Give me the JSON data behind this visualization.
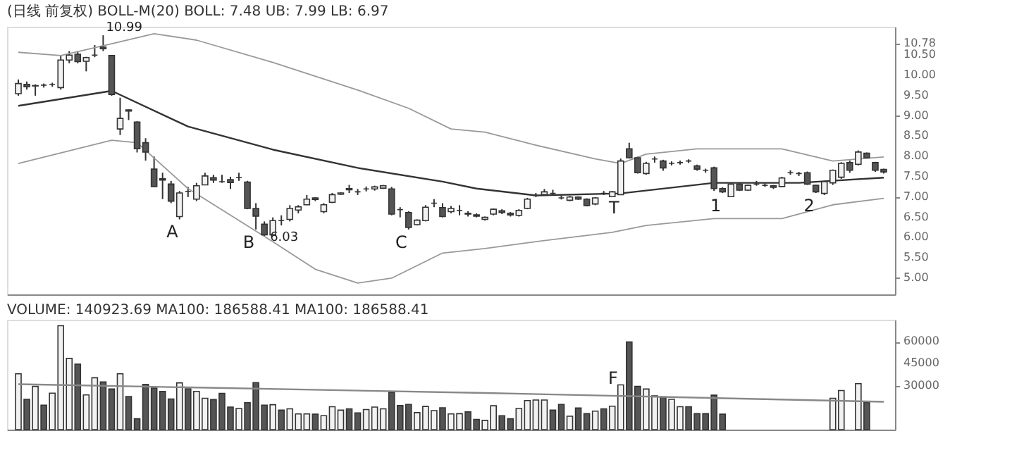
{
  "chart_data": [
    {
      "type": "candlestick",
      "title": "(日线 前复权) BOLL-M(20) BOLL: 7.48 UB: 7.99 LB: 6.97",
      "categories": [
        null,
        null,
        null,
        null,
        null,
        null,
        null,
        null,
        null,
        null,
        null,
        null,
        null,
        null,
        null,
        null,
        null,
        null,
        null,
        null,
        null,
        null,
        null,
        null,
        null,
        null,
        null,
        null,
        null,
        null,
        null,
        null,
        null,
        null,
        null,
        null,
        null,
        null,
        null,
        null,
        null,
        null,
        null,
        null,
        null,
        null,
        null,
        null,
        null,
        null,
        null,
        null,
        null,
        null,
        null,
        null,
        null,
        null,
        null,
        null,
        null,
        null,
        null,
        null,
        null,
        null,
        null,
        null,
        null,
        null,
        null,
        null,
        null,
        null,
        null,
        null,
        null,
        null,
        null,
        null,
        null,
        null,
        null,
        null,
        null,
        null,
        null,
        null,
        null,
        null,
        null,
        null,
        null,
        null,
        null,
        null,
        null,
        null,
        null,
        null,
        null,
        null,
        null
      ],
      "ohlc": [
        [
          9.55,
          9.9,
          9.5,
          9.8
        ],
        [
          9.78,
          9.85,
          9.65,
          9.72
        ],
        [
          9.74,
          9.78,
          9.5,
          9.75
        ],
        [
          9.76,
          9.8,
          9.7,
          9.76
        ],
        [
          9.78,
          9.82,
          9.72,
          9.78
        ],
        [
          9.7,
          10.5,
          9.65,
          10.38
        ],
        [
          10.38,
          10.6,
          10.3,
          10.5
        ],
        [
          10.52,
          10.6,
          10.3,
          10.34
        ],
        [
          10.35,
          10.46,
          10.1,
          10.44
        ],
        [
          10.5,
          10.75,
          10.45,
          10.5
        ],
        [
          10.7,
          10.99,
          10.6,
          10.66
        ],
        [
          10.49,
          10.5,
          9.5,
          9.53
        ],
        [
          8.68,
          9.45,
          8.53,
          8.94
        ],
        [
          9.15,
          9.16,
          8.9,
          9.12
        ],
        [
          8.85,
          8.87,
          8.1,
          8.19
        ],
        [
          8.34,
          8.45,
          7.9,
          8.11
        ],
        [
          7.69,
          8.0,
          7.25,
          7.26
        ],
        [
          7.45,
          7.6,
          6.95,
          7.42
        ],
        [
          7.32,
          7.4,
          6.85,
          6.9
        ],
        [
          6.52,
          7.15,
          6.45,
          7.1
        ],
        [
          7.14,
          7.25,
          7.0,
          7.14
        ],
        [
          6.95,
          7.35,
          6.9,
          7.28
        ],
        [
          7.3,
          7.6,
          7.3,
          7.52
        ],
        [
          7.48,
          7.55,
          7.35,
          7.42
        ],
        [
          7.38,
          7.55,
          7.35,
          7.38
        ],
        [
          7.43,
          7.5,
          7.2,
          7.36
        ],
        [
          7.48,
          7.6,
          7.4,
          7.48
        ],
        [
          7.37,
          7.4,
          6.7,
          6.72
        ],
        [
          6.72,
          6.85,
          6.2,
          6.53
        ],
        [
          6.33,
          6.4,
          6.03,
          6.07
        ],
        [
          6.07,
          6.5,
          6.05,
          6.42
        ],
        [
          6.42,
          6.55,
          6.3,
          6.42
        ],
        [
          6.45,
          6.8,
          6.4,
          6.72
        ],
        [
          6.68,
          6.8,
          6.6,
          6.76
        ],
        [
          6.81,
          7.05,
          6.8,
          6.95
        ],
        [
          6.98,
          7.0,
          6.9,
          6.94
        ],
        [
          6.64,
          6.85,
          6.6,
          6.81
        ],
        [
          6.87,
          7.1,
          6.85,
          7.06
        ],
        [
          7.07,
          7.12,
          7.05,
          7.1
        ],
        [
          7.21,
          7.3,
          7.1,
          7.18
        ],
        [
          7.13,
          7.2,
          7.05,
          7.13
        ],
        [
          7.2,
          7.26,
          7.14,
          7.2
        ],
        [
          7.2,
          7.28,
          7.16,
          7.25
        ],
        [
          7.22,
          7.3,
          7.2,
          7.28
        ],
        [
          7.2,
          7.25,
          6.55,
          6.58
        ],
        [
          6.69,
          6.75,
          6.5,
          6.69
        ],
        [
          6.62,
          6.65,
          6.2,
          6.25
        ],
        [
          6.32,
          6.45,
          6.3,
          6.43
        ],
        [
          6.42,
          6.8,
          6.4,
          6.75
        ],
        [
          6.85,
          6.95,
          6.75,
          6.85
        ],
        [
          6.74,
          6.85,
          6.5,
          6.52
        ],
        [
          6.64,
          6.78,
          6.6,
          6.72
        ],
        [
          6.67,
          6.8,
          6.55,
          6.67
        ],
        [
          6.6,
          6.65,
          6.52,
          6.58
        ],
        [
          6.56,
          6.6,
          6.5,
          6.53
        ],
        [
          6.45,
          6.52,
          6.42,
          6.5
        ],
        [
          6.58,
          6.72,
          6.55,
          6.7
        ],
        [
          6.66,
          6.7,
          6.58,
          6.62
        ],
        [
          6.6,
          6.63,
          6.52,
          6.56
        ],
        [
          6.55,
          6.7,
          6.52,
          6.67
        ],
        [
          6.72,
          6.98,
          6.7,
          6.95
        ],
        [
          7.04,
          7.1,
          7.0,
          7.04
        ],
        [
          7.06,
          7.2,
          7.05,
          7.13
        ],
        [
          7.09,
          7.18,
          7.04,
          7.09
        ],
        [
          6.98,
          7.04,
          6.94,
          6.98
        ],
        [
          6.92,
          7.03,
          6.9,
          7.0
        ],
        [
          7.0,
          7.02,
          6.93,
          6.95
        ],
        [
          6.95,
          6.97,
          6.77,
          6.79
        ],
        [
          6.83,
          7.0,
          6.8,
          6.98
        ],
        [
          7.09,
          7.15,
          7.05,
          7.09
        ],
        [
          7.01,
          7.15,
          7.0,
          7.13
        ],
        [
          7.06,
          7.95,
          7.05,
          7.89
        ],
        [
          8.19,
          8.34,
          7.95,
          7.97
        ],
        [
          7.97,
          8.0,
          7.58,
          7.6
        ],
        [
          7.58,
          7.87,
          7.55,
          7.83
        ],
        [
          7.94,
          8.0,
          7.85,
          7.94
        ],
        [
          7.89,
          7.92,
          7.65,
          7.72
        ],
        [
          7.83,
          7.88,
          7.78,
          7.83
        ],
        [
          7.85,
          7.9,
          7.8,
          7.85
        ],
        [
          7.89,
          7.93,
          7.84,
          7.89
        ],
        [
          7.77,
          7.8,
          7.65,
          7.69
        ],
        [
          7.66,
          7.7,
          7.6,
          7.66
        ],
        [
          7.72,
          7.75,
          7.15,
          7.21
        ],
        [
          7.21,
          7.24,
          7.1,
          7.13
        ],
        [
          7.01,
          7.34,
          7.0,
          7.32
        ],
        [
          7.32,
          7.35,
          7.15,
          7.17
        ],
        [
          7.17,
          7.31,
          7.15,
          7.29
        ],
        [
          7.32,
          7.4,
          7.28,
          7.32
        ],
        [
          7.29,
          7.34,
          7.25,
          7.29
        ],
        [
          7.28,
          7.3,
          7.2,
          7.24
        ],
        [
          7.26,
          7.5,
          7.25,
          7.47
        ],
        [
          7.6,
          7.66,
          7.55,
          7.6
        ],
        [
          7.58,
          7.62,
          7.52,
          7.58
        ],
        [
          7.6,
          7.63,
          7.3,
          7.32
        ],
        [
          7.29,
          7.3,
          7.1,
          7.13
        ],
        [
          7.09,
          7.4,
          7.05,
          7.38
        ],
        [
          7.35,
          7.68,
          7.3,
          7.66
        ],
        [
          7.49,
          7.86,
          7.45,
          7.83
        ],
        [
          7.85,
          7.9,
          7.6,
          7.66
        ],
        [
          7.81,
          8.15,
          7.78,
          8.11
        ],
        [
          8.08,
          8.1,
          7.95,
          7.97
        ],
        [
          7.85,
          7.87,
          7.62,
          7.66
        ],
        [
          7.68,
          7.7,
          7.58,
          7.62
        ]
      ],
      "series": [
        {
          "type": "line",
          "color": "#333333",
          "values": [
            9.25,
            null,
            null,
            null,
            null,
            null,
            null,
            null,
            null,
            null,
            null,
            9.62,
            null,
            null,
            null,
            null,
            null,
            null,
            null,
            null,
            8.74,
            null,
            null,
            null,
            null,
            null,
            null,
            null,
            null,
            null,
            8.17,
            null,
            null,
            null,
            null,
            null,
            null,
            null,
            null,
            null,
            7.72,
            null,
            null,
            null,
            null,
            null,
            null,
            null,
            null,
            null,
            7.38,
            null,
            null,
            null,
            7.21,
            null,
            null,
            null,
            null,
            null,
            null,
            7.04,
            null,
            null,
            null,
            null,
            null,
            null,
            null,
            null,
            null,
            7.09,
            null,
            null,
            null,
            null,
            null,
            null,
            null,
            null,
            null,
            null,
            7.35,
            null,
            null,
            null,
            null,
            null,
            null,
            null,
            null,
            null,
            7.35,
            null,
            null,
            null,
            null,
            null,
            null,
            null,
            null,
            null,
            7.48
          ]
        },
        {
          "type": "line",
          "color": "#999999",
          "values": [
            10.57,
            null,
            null,
            null,
            null,
            10.49,
            null,
            null,
            null,
            null,
            null,
            10.78,
            null,
            null,
            null,
            null,
            11.03,
            null,
            null,
            null,
            null,
            10.87,
            null,
            null,
            null,
            null,
            null,
            null,
            null,
            null,
            10.32,
            null,
            null,
            null,
            null,
            null,
            null,
            null,
            null,
            null,
            9.64,
            null,
            null,
            null,
            null,
            null,
            9.19,
            null,
            null,
            null,
            null,
            8.68,
            null,
            null,
            null,
            8.6,
            null,
            null,
            null,
            null,
            null,
            8.28,
            null,
            null,
            null,
            null,
            null,
            null,
            7.94,
            null,
            null,
            7.83,
            null,
            null,
            8.06,
            null,
            null,
            null,
            null,
            null,
            8.19,
            null,
            null,
            null,
            null,
            null,
            null,
            null,
            null,
            null,
            8.19,
            null,
            null,
            null,
            null,
            null,
            7.89,
            null,
            null,
            null,
            null,
            null,
            7.99
          ]
        },
        {
          "type": "line",
          "color": "#999999",
          "values": [
            7.83,
            null,
            null,
            null,
            null,
            null,
            null,
            null,
            null,
            null,
            null,
            8.4,
            null,
            null,
            8.34,
            null,
            null,
            null,
            null,
            null,
            7.21,
            null,
            null,
            null,
            null,
            null,
            null,
            null,
            null,
            null,
            5.9,
            null,
            null,
            null,
            null,
            5.22,
            null,
            null,
            null,
            null,
            4.88,
            null,
            null,
            null,
            5.0,
            null,
            null,
            null,
            null,
            null,
            5.62,
            null,
            null,
            null,
            null,
            5.73,
            null,
            null,
            null,
            null,
            null,
            5.9,
            null,
            null,
            null,
            null,
            null,
            null,
            null,
            null,
            6.13,
            null,
            null,
            null,
            6.3,
            null,
            null,
            null,
            null,
            null,
            null,
            null,
            6.47,
            null,
            null,
            null,
            null,
            null,
            null,
            null,
            6.47,
            null,
            null,
            null,
            null,
            null,
            6.81,
            null,
            null,
            null,
            null,
            null,
            6.97
          ]
        }
      ],
      "ylim": [
        4.6,
        11.2
      ],
      "yticks": [
        {
          "value": 5,
          "label": "5.00"
        },
        {
          "value": 5.5,
          "label": "5.50"
        },
        {
          "value": 6,
          "label": "6.00"
        },
        {
          "value": 6.5,
          "label": "6.50"
        },
        {
          "value": 7,
          "label": "7.00"
        },
        {
          "value": 7.5,
          "label": "7.50"
        },
        {
          "value": 8,
          "label": "8.00"
        },
        {
          "value": 8.5,
          "label": "8.50"
        },
        {
          "value": 9,
          "label": "9.00"
        },
        {
          "value": 9.5,
          "label": "9.50"
        },
        {
          "value": 10,
          "label": "10.00"
        },
        {
          "value": 10.5,
          "label": "10.50"
        },
        {
          "value": 10.78,
          "label": "10.78"
        }
      ],
      "tick_labels": "y",
      "grid": false,
      "value_labels": [
        null,
        null,
        null,
        null,
        null,
        null,
        null,
        null,
        null,
        null,
        "10.99",
        null,
        null,
        null,
        null,
        null,
        null,
        null,
        null,
        "A",
        null,
        null,
        null,
        null,
        null,
        null,
        null,
        null,
        "B",
        "6.03",
        null,
        null,
        null,
        null,
        null,
        null,
        null,
        null,
        null,
        null,
        null,
        null,
        null,
        null,
        null,
        null,
        "C",
        null,
        null,
        null,
        null,
        null,
        null,
        null,
        null,
        null,
        null,
        null,
        null,
        null,
        null,
        null,
        null,
        null,
        null,
        null,
        null,
        null,
        null,
        null,
        null,
        "T",
        null,
        null,
        null,
        null,
        null,
        null,
        null,
        null,
        null,
        null,
        null,
        "1",
        null,
        null,
        null,
        null,
        null,
        null,
        null,
        null,
        null,
        null,
        "2",
        null,
        null,
        null,
        null,
        null,
        null,
        null,
        null
      ]
    },
    {
      "type": "bar",
      "title": "VOLUME: 140923.69 MA100: 186588.41 MA100: 186588.41",
      "categories": [
        null,
        null,
        null,
        null,
        null,
        null,
        null,
        null,
        null,
        null,
        null,
        null,
        null,
        null,
        null,
        null,
        null,
        null,
        null,
        null,
        null,
        null,
        null,
        null,
        null,
        null,
        null,
        null,
        null,
        null,
        null,
        null,
        null,
        null,
        null,
        null,
        null,
        null,
        null,
        null,
        null,
        null,
        null,
        null,
        null,
        null,
        null,
        null,
        null,
        null,
        null,
        null,
        null,
        null,
        null,
        null,
        null,
        null,
        null,
        null,
        null,
        null,
        null,
        null,
        null,
        null,
        null,
        null,
        null,
        null,
        null,
        null,
        null,
        null,
        null,
        null,
        null,
        null,
        null,
        null,
        null,
        null,
        null,
        null,
        null,
        null,
        null,
        null,
        null,
        null,
        null,
        null,
        null,
        null,
        null,
        null,
        null,
        null,
        null,
        null,
        null,
        null,
        null
      ],
      "values": [
        38100,
        20700,
        29500,
        16700,
        24900,
        70900,
        48600,
        44700,
        23700,
        35400,
        32600,
        27700,
        38100,
        22600,
        7400,
        30900,
        28400,
        26100,
        20900,
        31900,
        27900,
        26100,
        21400,
        20500,
        24700,
        15400,
        14400,
        18400,
        32100,
        16700,
        17000,
        13300,
        14200,
        10700,
        10700,
        10500,
        9500,
        15600,
        13300,
        14200,
        11400,
        13700,
        15400,
        14200,
        25400,
        16500,
        17200,
        11600,
        15800,
        13000,
        14900,
        10700,
        10900,
        12100,
        7000,
        6300,
        16300,
        9500,
        7400,
        14400,
        19800,
        20200,
        20200,
        13300,
        17200,
        9100,
        14700,
        10900,
        12600,
        14200,
        16000,
        30500,
        59800,
        29500,
        27700,
        23000,
        22300,
        20700,
        15600,
        15600,
        10900,
        10900,
        23500,
        10500,
        null,
        null,
        null,
        null,
        null,
        null,
        null,
        null,
        null,
        null,
        null,
        null,
        21400,
        26700,
        null,
        31400,
        18400,
        null,
        null
      ],
      "colors": [
        "#ffffff",
        "#555555",
        "#ffffff",
        "#555555",
        "#ffffff",
        "#ffffff",
        "#ffffff",
        "#555555",
        "#ffffff",
        "#ffffff",
        "#555555",
        "#555555",
        "#ffffff",
        "#555555",
        "#555555",
        "#555555",
        "#555555",
        "#555555",
        "#555555",
        "#ffffff",
        "#555555",
        "#ffffff",
        "#ffffff",
        "#555555",
        "#555555",
        "#555555",
        "#ffffff",
        "#555555",
        "#555555",
        "#555555",
        "#ffffff",
        "#555555",
        "#ffffff",
        "#ffffff",
        "#ffffff",
        "#555555",
        "#ffffff",
        "#ffffff",
        "#ffffff",
        "#555555",
        "#555555",
        "#ffffff",
        "#ffffff",
        "#ffffff",
        "#555555",
        "#555555",
        "#555555",
        "#ffffff",
        "#ffffff",
        "#ffffff",
        "#555555",
        "#ffffff",
        "#ffffff",
        "#555555",
        "#555555",
        "#ffffff",
        "#ffffff",
        "#555555",
        "#555555",
        "#ffffff",
        "#ffffff",
        "#ffffff",
        "#ffffff",
        "#555555",
        "#555555",
        "#ffffff",
        "#555555",
        "#555555",
        "#ffffff",
        "#555555",
        "#ffffff",
        "#ffffff",
        "#555555",
        "#555555",
        "#ffffff",
        "#ffffff",
        "#555555",
        "#ffffff",
        "#ffffff",
        "#555555",
        "#555555",
        "#555555",
        "#555555",
        "#555555",
        "#ffffff",
        "#ffffff",
        "#ffffff",
        "#ffffff",
        "#ffffff",
        "#ffffff",
        "#ffffff",
        "#ffffff",
        "#ffffff",
        "#ffffff",
        "#ffffff",
        "#ffffff",
        "#ffffff",
        "#ffffff",
        "#ffffff",
        "#ffffff",
        "#555555",
        "#ffffff",
        "#ffffff"
      ],
      "series": [
        {
          "type": "line",
          "color": "#888888",
          "values": [
            31000,
            null,
            null,
            null,
            null,
            null,
            null,
            null,
            null,
            null,
            null,
            null,
            null,
            null,
            null,
            null,
            null,
            null,
            null,
            null,
            null,
            null,
            null,
            null,
            null,
            null,
            null,
            null,
            null,
            null,
            null,
            null,
            null,
            null,
            null,
            null,
            null,
            null,
            null,
            null,
            null,
            null,
            null,
            null,
            null,
            null,
            null,
            null,
            null,
            null,
            null,
            null,
            null,
            null,
            null,
            25000,
            null,
            null,
            null,
            null,
            null,
            null,
            null,
            null,
            null,
            null,
            null,
            null,
            null,
            null,
            null,
            null,
            null,
            null,
            null,
            null,
            null,
            null,
            null,
            null,
            null,
            null,
            null,
            null,
            null,
            null,
            null,
            null,
            null,
            null,
            null,
            null,
            null,
            null,
            null,
            null,
            null,
            null,
            null,
            null,
            null,
            null,
            19000
          ]
        }
      ],
      "ylim": [
        0,
        75000
      ],
      "yticks": [
        30000,
        45000,
        60000
      ],
      "tick_labels": "y",
      "grid": false,
      "value_labels": [
        null,
        null,
        null,
        null,
        null,
        null,
        null,
        null,
        null,
        null,
        null,
        null,
        null,
        null,
        null,
        null,
        null,
        null,
        null,
        null,
        null,
        null,
        null,
        null,
        null,
        null,
        null,
        null,
        null,
        null,
        null,
        null,
        null,
        null,
        null,
        null,
        null,
        null,
        null,
        null,
        null,
        null,
        null,
        null,
        null,
        null,
        null,
        null,
        null,
        null,
        null,
        null,
        null,
        null,
        null,
        null,
        null,
        null,
        null,
        null,
        null,
        null,
        null,
        null,
        null,
        null,
        null,
        null,
        null,
        null,
        null,
        "F",
        null,
        null,
        null,
        null,
        null,
        null,
        null,
        null,
        null,
        null,
        null,
        null,
        null,
        null,
        null,
        null,
        null,
        null,
        null,
        null,
        null,
        null,
        null,
        null,
        null,
        null,
        null,
        null,
        null,
        null,
        null
      ]
    }
  ]
}
